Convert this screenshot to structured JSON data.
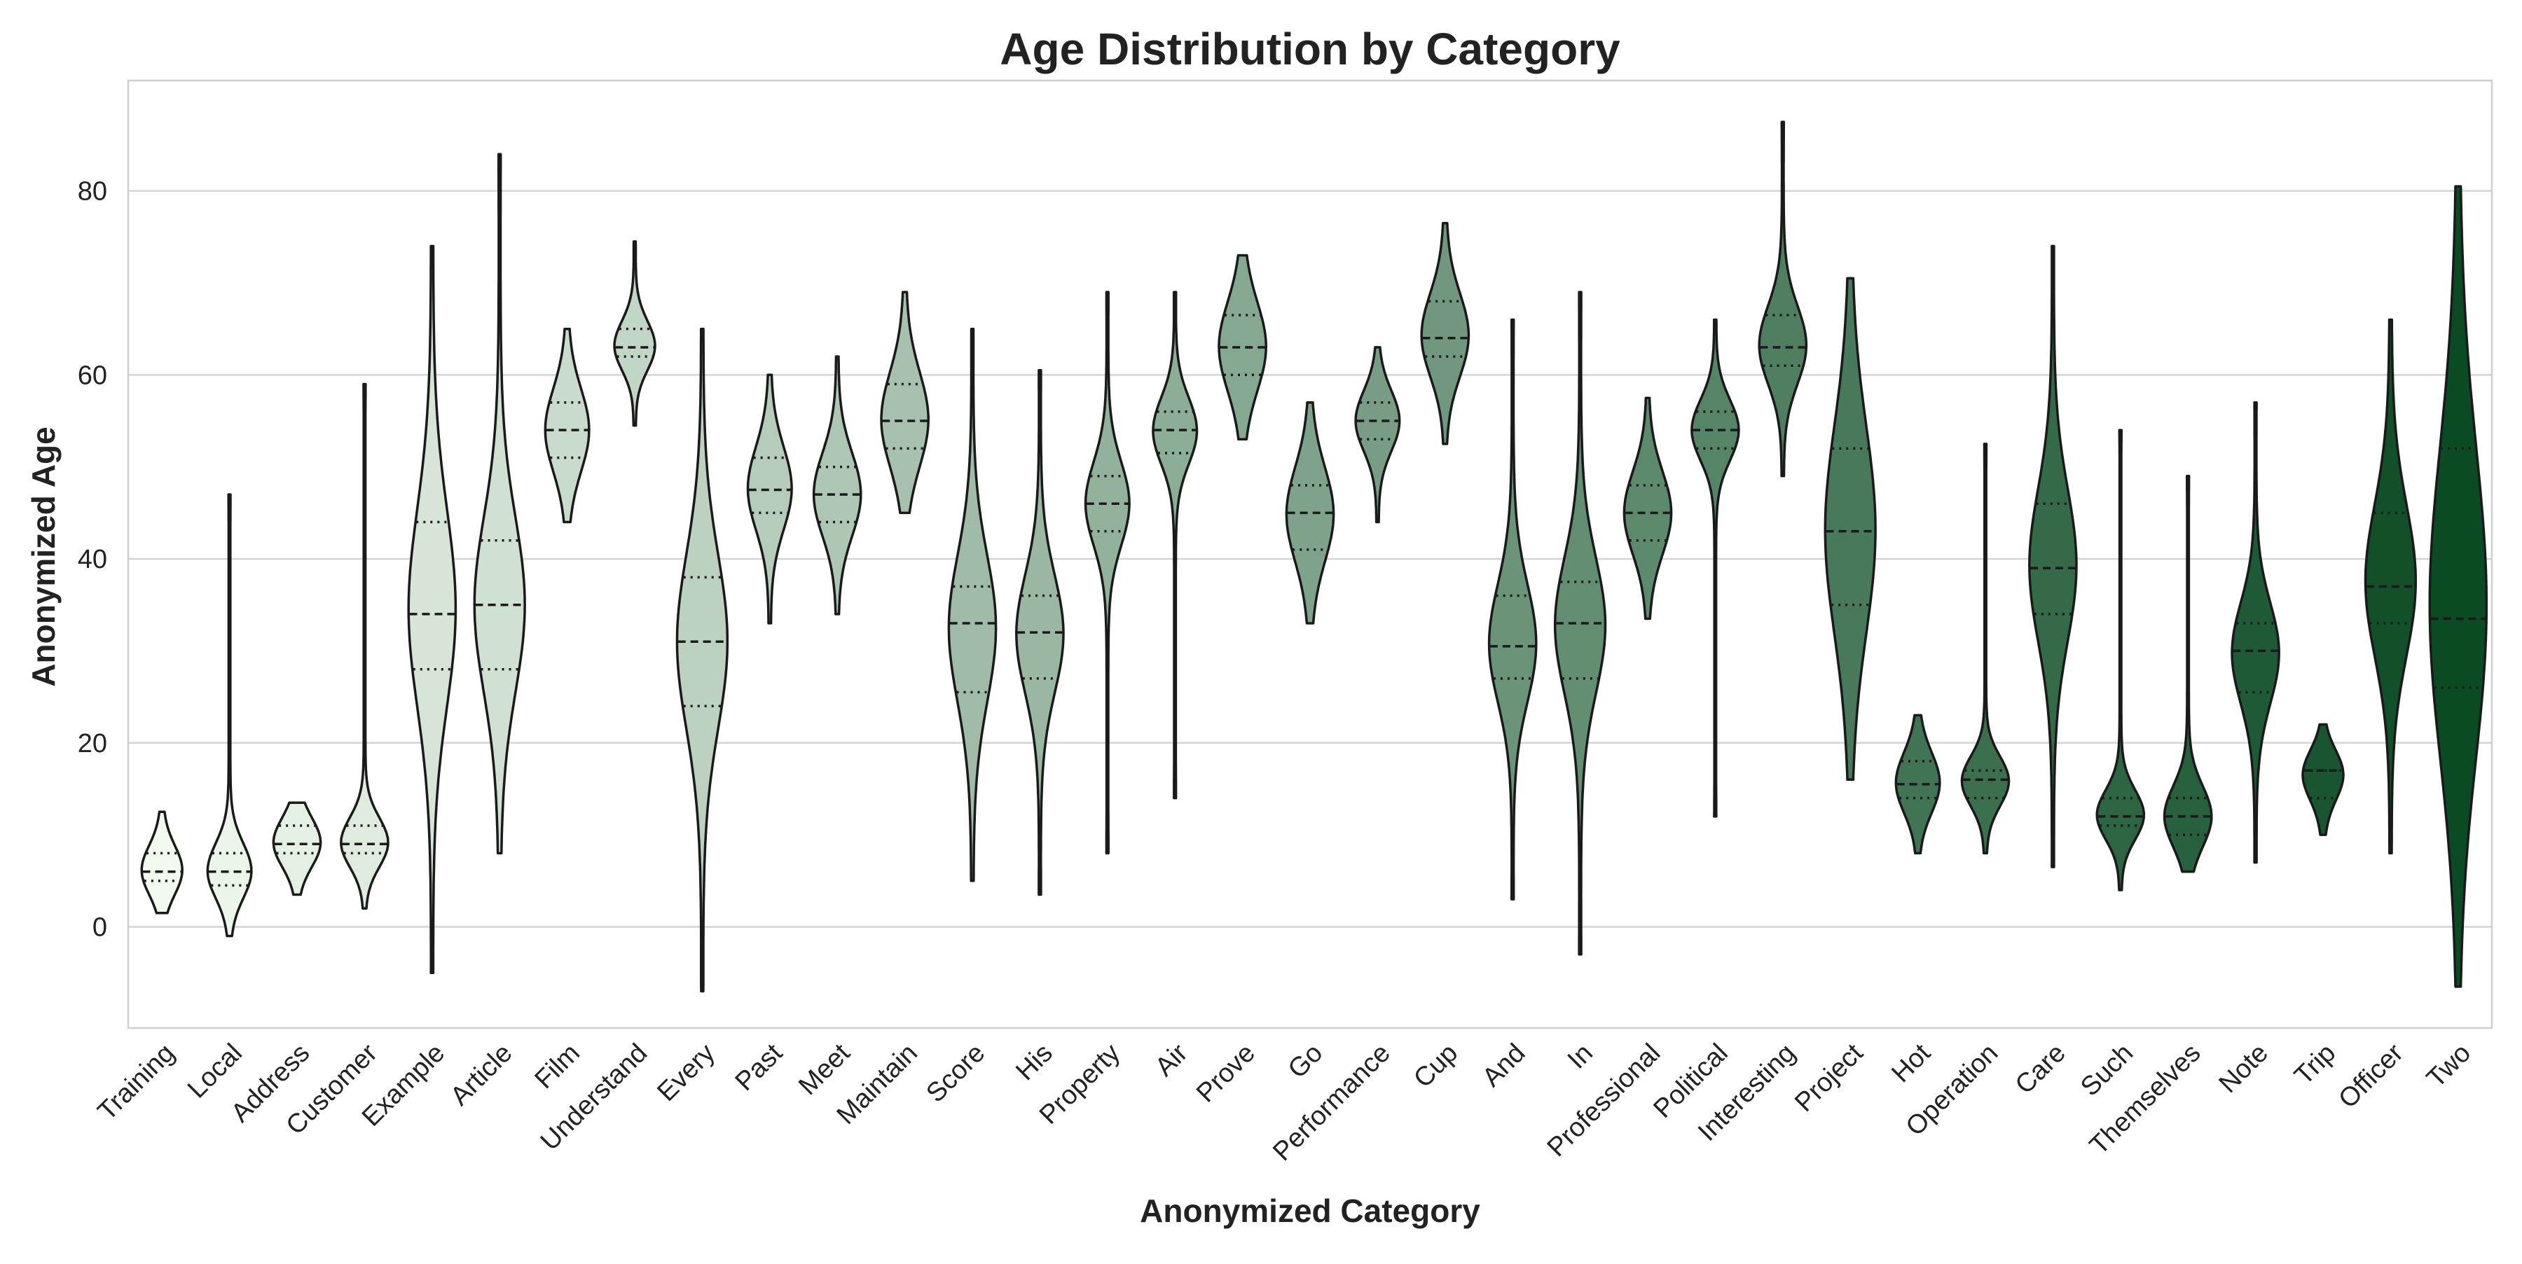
{
  "chart_data": {
    "type": "violin",
    "title": "Age Distribution by Category",
    "xlabel": "Anonymized Category",
    "ylabel": "Anonymized Age",
    "ylim": [
      -11,
      92
    ],
    "yticks": [
      0,
      20,
      40,
      60,
      80
    ],
    "grid": true,
    "inner": "quartile",
    "colormap": "Greens",
    "color_range": [
      "#f2faf0",
      "#0b4b24"
    ],
    "categories": [
      "Training",
      "Local",
      "Address",
      "Customer",
      "Example",
      "Article",
      "Film",
      "Understand",
      "Every",
      "Past",
      "Meet",
      "Maintain",
      "Score",
      "His",
      "Property",
      "Air",
      "Prove",
      "Go",
      "Performance",
      "Cup",
      "And",
      "In",
      "Professional",
      "Political",
      "Interesting",
      "Project",
      "Hot",
      "Operation",
      "Care",
      "Such",
      "Themselves",
      "Note",
      "Trip",
      "Officer",
      "Two"
    ],
    "series": [
      {
        "min": 1.5,
        "q1": 5,
        "median": 6,
        "q3": 8,
        "max": 12.5,
        "width": 0.6
      },
      {
        "min": -1,
        "q1": 4.5,
        "median": 6,
        "q3": 8,
        "max": 47,
        "width": 0.65
      },
      {
        "min": 3.5,
        "q1": 8,
        "median": 9,
        "q3": 11,
        "max": 13.5,
        "width": 0.7
      },
      {
        "min": 2,
        "q1": 8,
        "median": 9,
        "q3": 11,
        "max": 59,
        "width": 0.7
      },
      {
        "min": -5,
        "q1": 28,
        "median": 34,
        "q3": 44,
        "max": 74,
        "width": 0.7
      },
      {
        "min": 8,
        "q1": 28,
        "median": 35,
        "q3": 42,
        "max": 84,
        "width": 0.75
      },
      {
        "min": 44,
        "q1": 51,
        "median": 54,
        "q3": 57,
        "max": 65,
        "width": 0.65
      },
      {
        "min": 54.5,
        "q1": 62,
        "median": 63,
        "q3": 65,
        "max": 74.5,
        "width": 0.6
      },
      {
        "min": -7,
        "q1": 24,
        "median": 31,
        "q3": 38,
        "max": 65,
        "width": 0.75
      },
      {
        "min": 33,
        "q1": 45,
        "median": 47.5,
        "q3": 51,
        "max": 60,
        "width": 0.65
      },
      {
        "min": 34,
        "q1": 44,
        "median": 47,
        "q3": 50,
        "max": 62,
        "width": 0.7
      },
      {
        "min": 45,
        "q1": 52,
        "median": 55,
        "q3": 59,
        "max": 69,
        "width": 0.7
      },
      {
        "min": 5,
        "q1": 25.5,
        "median": 33,
        "q3": 37,
        "max": 65,
        "width": 0.7
      },
      {
        "min": 3.5,
        "q1": 27,
        "median": 32,
        "q3": 36,
        "max": 60.5,
        "width": 0.7
      },
      {
        "min": 8,
        "q1": 43,
        "median": 46,
        "q3": 49,
        "max": 69,
        "width": 0.65
      },
      {
        "min": 14,
        "q1": 51.5,
        "median": 54,
        "q3": 56,
        "max": 69,
        "width": 0.65
      },
      {
        "min": 53,
        "q1": 60,
        "median": 63,
        "q3": 66.5,
        "max": 73,
        "width": 0.7
      },
      {
        "min": 33,
        "q1": 41,
        "median": 45,
        "q3": 48,
        "max": 57,
        "width": 0.7
      },
      {
        "min": 44,
        "q1": 53,
        "median": 55,
        "q3": 57,
        "max": 63,
        "width": 0.65
      },
      {
        "min": 52.5,
        "q1": 62,
        "median": 64,
        "q3": 68,
        "max": 76.5,
        "width": 0.7
      },
      {
        "min": 3,
        "q1": 27,
        "median": 30.5,
        "q3": 36,
        "max": 66,
        "width": 0.7
      },
      {
        "min": -3,
        "q1": 27,
        "median": 33,
        "q3": 37.5,
        "max": 69,
        "width": 0.75
      },
      {
        "min": 33.5,
        "q1": 42,
        "median": 45,
        "q3": 48,
        "max": 57.5,
        "width": 0.7
      },
      {
        "min": 12,
        "q1": 52,
        "median": 54,
        "q3": 56,
        "max": 66,
        "width": 0.7
      },
      {
        "min": 49,
        "q1": 61,
        "median": 63,
        "q3": 66.5,
        "max": 87.5,
        "width": 0.7
      },
      {
        "min": 16,
        "q1": 35,
        "median": 43,
        "q3": 52,
        "max": 70.5,
        "width": 0.75
      },
      {
        "min": 8,
        "q1": 14,
        "median": 15.5,
        "q3": 18,
        "max": 23,
        "width": 0.65
      },
      {
        "min": 8,
        "q1": 14,
        "median": 16,
        "q3": 17,
        "max": 52.5,
        "width": 0.7
      },
      {
        "min": 6.5,
        "q1": 34,
        "median": 39,
        "q3": 46,
        "max": 74,
        "width": 0.7
      },
      {
        "min": 4,
        "q1": 11,
        "median": 12,
        "q3": 14,
        "max": 54,
        "width": 0.7
      },
      {
        "min": 6,
        "q1": 10,
        "median": 12,
        "q3": 14,
        "max": 49,
        "width": 0.7
      },
      {
        "min": 7,
        "q1": 25.5,
        "median": 30,
        "q3": 33,
        "max": 57,
        "width": 0.7
      },
      {
        "min": 10,
        "q1": 14,
        "median": 17,
        "q3": 17,
        "max": 22,
        "width": 0.6
      },
      {
        "min": 8,
        "q1": 33,
        "median": 37,
        "q3": 45,
        "max": 66,
        "width": 0.75
      },
      {
        "min": -6.5,
        "q1": 26,
        "median": 33.5,
        "q3": 52,
        "max": 80.5,
        "width": 0.85
      }
    ]
  }
}
